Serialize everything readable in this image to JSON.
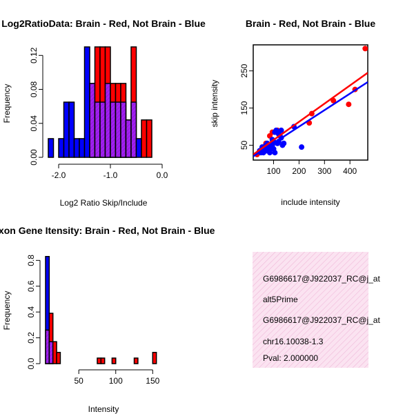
{
  "colors": {
    "red": "#ff0000",
    "blue": "#0000ff",
    "purple": "#a020f0",
    "info_bg": "#f7d7ec",
    "pval": "#8b0000"
  },
  "chart_data": [
    {
      "type": "bar",
      "title": "Log2RatioData: Brain - Red, Not Brain - Blue",
      "xlabel": "Log2 Ratio Skip/Include",
      "ylabel": "Frequency",
      "xlim": [
        -2.2,
        0.0
      ],
      "ylim": [
        0,
        0.13
      ],
      "xticks": [
        "-2.0",
        "-1.0",
        "0.0"
      ],
      "yticks": [
        "0.00",
        "0.04",
        "0.08",
        "0.12"
      ],
      "bin_width": 0.1,
      "bin_starts": [
        -2.2,
        -2.1,
        -2.0,
        -1.9,
        -1.8,
        -1.7,
        -1.6,
        -1.5,
        -1.4,
        -1.3,
        -1.2,
        -1.1,
        -1.0,
        -0.9,
        -0.8,
        -0.7,
        -0.6,
        -0.5,
        -0.4,
        -0.3,
        -0.2,
        -0.1
      ],
      "series": [
        {
          "name": "Not Brain",
          "color": "blue",
          "values": [
            0.022,
            0,
            0.022,
            0.065,
            0.065,
            0.022,
            0.022,
            0.13,
            0.087,
            0.065,
            0.065,
            0.087,
            0.065,
            0.065,
            0.065,
            0.044,
            0.065,
            0.022,
            0,
            0,
            0,
            0
          ]
        },
        {
          "name": "Brain",
          "color": "red",
          "values": [
            0,
            0,
            0,
            0,
            0,
            0,
            0,
            0,
            0.087,
            0.13,
            0.13,
            0.13,
            0.087,
            0.087,
            0.087,
            0.044,
            0.13,
            0,
            0.044,
            0.044,
            0,
            0
          ]
        }
      ]
    },
    {
      "type": "scatter",
      "title": "Brain - Red, Not Brain - Blue",
      "xlabel": "include intensity",
      "ylabel": "skip intensity",
      "xlim": [
        20,
        470
      ],
      "ylim": [
        10,
        320
      ],
      "xticks": [
        100,
        200,
        300,
        400
      ],
      "yticks": [
        50,
        150,
        250
      ],
      "series": [
        {
          "name": "Brain",
          "color": "red",
          "x": [
            460,
            420,
            395,
            335,
            250,
            240,
            115,
            95,
            85,
            70,
            60,
            50,
            35
          ],
          "y": [
            310,
            200,
            160,
            170,
            135,
            110,
            90,
            85,
            75,
            55,
            45,
            35,
            25
          ],
          "fit": [
            [
              20,
              25
            ],
            [
              470,
              245
            ]
          ]
        },
        {
          "name": "Not Brain",
          "color": "blue",
          "x": [
            105,
            110,
            120,
            125,
            130,
            135,
            140,
            100,
            95,
            90,
            85,
            80,
            75,
            70,
            65,
            60,
            55,
            50,
            45,
            115,
            180,
            210,
            95,
            105,
            130,
            120,
            100,
            85,
            70
          ],
          "y": [
            85,
            90,
            80,
            75,
            70,
            50,
            55,
            60,
            65,
            45,
            40,
            50,
            55,
            35,
            40,
            30,
            45,
            30,
            35,
            55,
            100,
            45,
            50,
            30,
            90,
            60,
            40,
            30,
            50
          ],
          "fit": [
            [
              20,
              20
            ],
            [
              470,
              220
            ]
          ]
        }
      ]
    },
    {
      "type": "bar",
      "title": "Exon Gene Itensity: Brain - Red, Not Brain - Blue",
      "xlabel": "Intensity",
      "ylabel": "Frequency",
      "xlim": [
        5,
        160
      ],
      "ylim": [
        0,
        0.85
      ],
      "xticks": [
        50,
        100,
        150
      ],
      "yticks": [
        "0.0",
        "0.2",
        "0.4",
        "0.6",
        "0.8"
      ],
      "bin_width": 5,
      "bin_starts": [
        5,
        10,
        15,
        20,
        75,
        80,
        95,
        125,
        150
      ],
      "series": [
        {
          "name": "Not Brain",
          "color": "blue",
          "values": [
            0.83,
            0.17,
            0,
            0,
            0,
            0,
            0,
            0,
            0
          ]
        },
        {
          "name": "Brain",
          "color": "red",
          "values": [
            0.26,
            0.39,
            0.17,
            0.087,
            0.043,
            0.043,
            0.043,
            0.043,
            0.087
          ]
        }
      ]
    }
  ],
  "info_box": {
    "line1": "G6986617@J922037_RC@j_at",
    "line2": "alt5Prime",
    "line3": "G6986617@J922037_RC@j_at",
    "line4": "chr16.10038-1.3",
    "pval": "Pval: 2.000000"
  }
}
